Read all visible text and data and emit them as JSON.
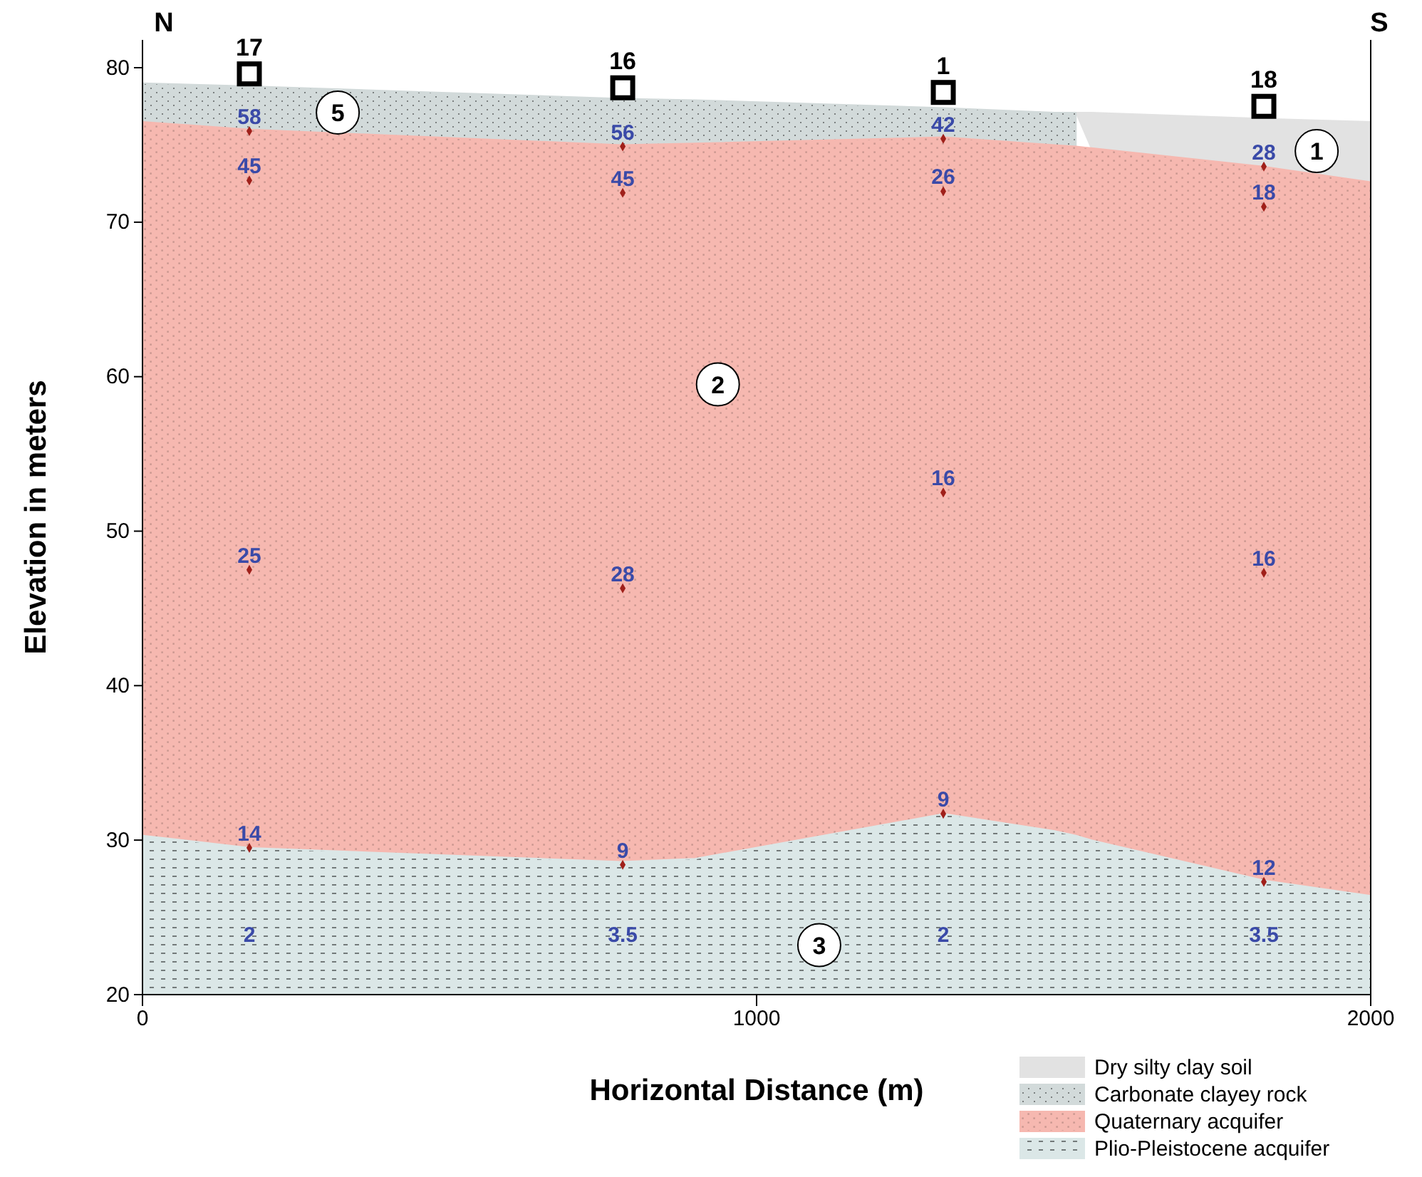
{
  "chart_data": {
    "type": "area",
    "xlabel": "Horizontal Distance (m)",
    "ylabel": "Elevation in meters",
    "x": [
      0,
      175,
      780,
      900,
      1305,
      1485,
      1520,
      1545,
      1825,
      2000
    ],
    "xlim": [
      0,
      2000
    ],
    "xticks": [
      0,
      1000,
      2000
    ],
    "ylim": [
      20,
      81.8
    ],
    "yticks": [
      20,
      30,
      40,
      50,
      60,
      70,
      80
    ],
    "legend": "bottom right",
    "series": [
      {
        "name": "Dry silty clay soil",
        "color": "#e2e2e2",
        "values": [
          null,
          null,
          null,
          null,
          null,
          null,
          77.1,
          77.1,
          76.7,
          76.5
        ]
      },
      {
        "name": "Carbonate clayey rock",
        "color": "#d2dada",
        "values": [
          79.0,
          78.8,
          78.0,
          77.9,
          77.4,
          77.1,
          77.1,
          null,
          null,
          null
        ]
      },
      {
        "name": "Quaternary acquifer",
        "color": "#f6b8b0",
        "values": [
          76.5,
          76.0,
          75.0,
          75.1,
          75.5,
          75.0,
          74.9,
          74.8,
          73.6,
          72.6
        ]
      },
      {
        "name": "Plio-Pleistocene acquifer",
        "color": "#dbe7e7",
        "values": [
          30.3,
          29.5,
          28.6,
          28.8,
          31.7,
          30.6,
          30.3,
          30.0,
          27.4,
          26.4
        ]
      },
      {
        "type": "scatter",
        "marker": "diamond",
        "color": "#a0201a",
        "x": [
          174,
          174,
          174,
          174,
          782,
          782,
          782,
          782,
          1304,
          1304,
          1304,
          1304,
          1826,
          1826,
          1826,
          1826
        ],
        "values": [
          75.9,
          72.7,
          47.5,
          29.5,
          74.9,
          71.9,
          46.3,
          28.4,
          75.4,
          72.0,
          52.5,
          31.7,
          73.6,
          71.0,
          47.3,
          27.3
        ]
      },
      {
        "type": "scatter",
        "marker": "square",
        "color": "#000000",
        "x": [
          174,
          782,
          1304,
          1826
        ],
        "values": [
          79.6,
          78.7,
          78.4,
          77.5
        ]
      }
    ],
    "annotations": [
      "N",
      "S",
      "2",
      "3.5",
      "2",
      "3.5",
      {
        "text": "17",
        "x": 174,
        "y": 79.6
      },
      {
        "text": "16",
        "x": 782,
        "y": 78.7
      },
      {
        "text": "1",
        "x": 1304,
        "y": 78.4
      },
      {
        "text": "18",
        "x": 1826,
        "y": 77.5
      },
      {
        "text": "58",
        "x": 174,
        "y": 75.9
      },
      {
        "text": "45",
        "x": 174,
        "y": 72.7
      },
      {
        "text": "25",
        "x": 174,
        "y": 47.5
      },
      {
        "text": "14",
        "x": 174,
        "y": 29.5
      },
      {
        "text": "56",
        "x": 782,
        "y": 74.9
      },
      {
        "text": "45",
        "x": 782,
        "y": 71.9
      },
      {
        "text": "28",
        "x": 782,
        "y": 46.3
      },
      {
        "text": "9",
        "x": 782,
        "y": 28.4
      },
      {
        "text": "42",
        "x": 1304,
        "y": 75.4
      },
      {
        "text": "26",
        "x": 1304,
        "y": 72.0
      },
      {
        "text": "16",
        "x": 1304,
        "y": 52.5
      },
      {
        "text": "9",
        "x": 1304,
        "y": 31.7
      },
      {
        "text": "28",
        "x": 1826,
        "y": 73.6
      },
      {
        "text": "18",
        "x": 1826,
        "y": 71.0
      },
      {
        "text": "16",
        "x": 1826,
        "y": 47.3
      },
      {
        "text": "12",
        "x": 1826,
        "y": 27.3
      },
      {
        "text": "5",
        "x": 318,
        "y": 77.1
      },
      {
        "text": "1",
        "x": 1912,
        "y": 74.6
      },
      {
        "text": "2",
        "x": 937,
        "y": 59.5
      },
      {
        "text": "3",
        "x": 1102,
        "y": 23.2
      }
    ]
  }
}
